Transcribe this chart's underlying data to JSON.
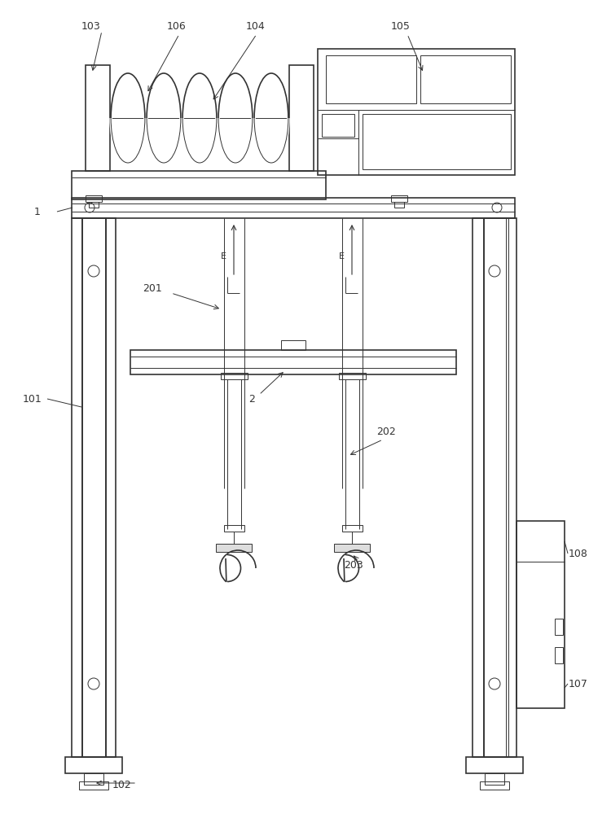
{
  "bg_color": "#ffffff",
  "line_color": "#333333",
  "lw": 1.2,
  "tlw": 0.7,
  "fs": 9
}
